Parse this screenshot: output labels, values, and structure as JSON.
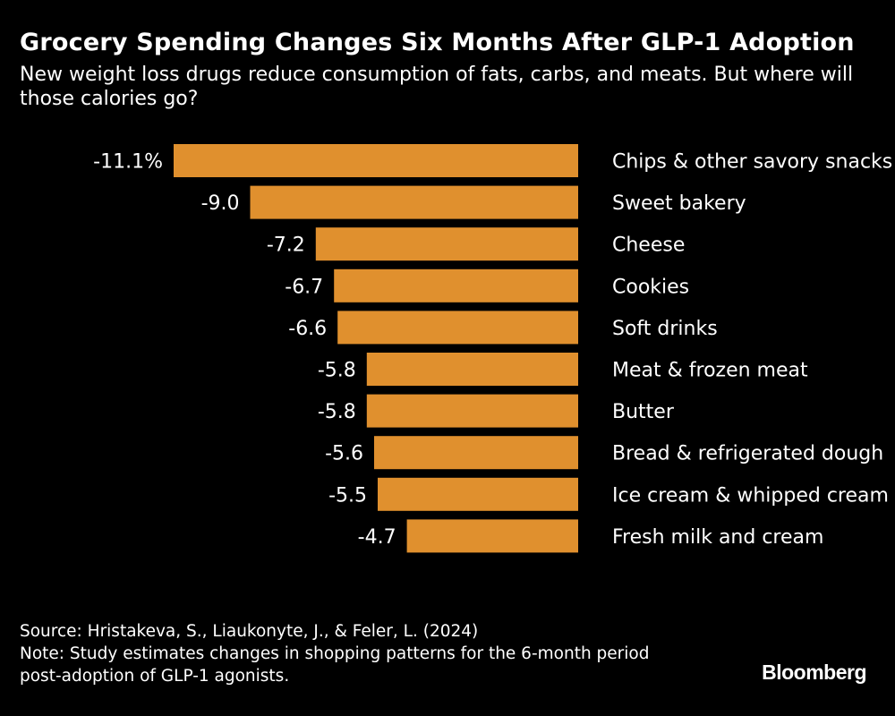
{
  "title": "Grocery Spending Changes Six Months After GLP-1 Adoption",
  "subtitle": "New weight loss drugs reduce consumption of fats, carbs, and meats. But where will those calories go?",
  "chart_data": {
    "type": "bar",
    "orientation": "horizontal",
    "unit": "%",
    "categories": [
      "Chips & other savory snacks",
      "Sweet bakery",
      "Cheese",
      "Cookies",
      "Soft drinks",
      "Meat & frozen meat",
      "Butter",
      "Bread & refrigerated dough",
      "Ice cream & whipped cream",
      "Fresh milk and cream"
    ],
    "values": [
      -11.1,
      -9.0,
      -7.2,
      -6.7,
      -6.6,
      -5.8,
      -5.8,
      -5.6,
      -5.5,
      -4.7
    ],
    "value_labels": [
      "-11.1%",
      "-9.0",
      "-7.2",
      "-6.7",
      "-6.6",
      "-5.8",
      "-5.8",
      "-5.6",
      "-5.5",
      "-4.7"
    ],
    "bar_color": "#e0902e",
    "xlim": [
      -11.1,
      0
    ],
    "grid": false,
    "legend": "none"
  },
  "footer": {
    "source": "Source: Hristakeva, S., Liaukonyte, J., & Feler, L. (2024)",
    "note_line1": "Note: Study estimates changes in shopping patterns for the 6-month period",
    "note_line2": "post-adoption of GLP-1 agonists."
  },
  "brand": "Bloomberg"
}
